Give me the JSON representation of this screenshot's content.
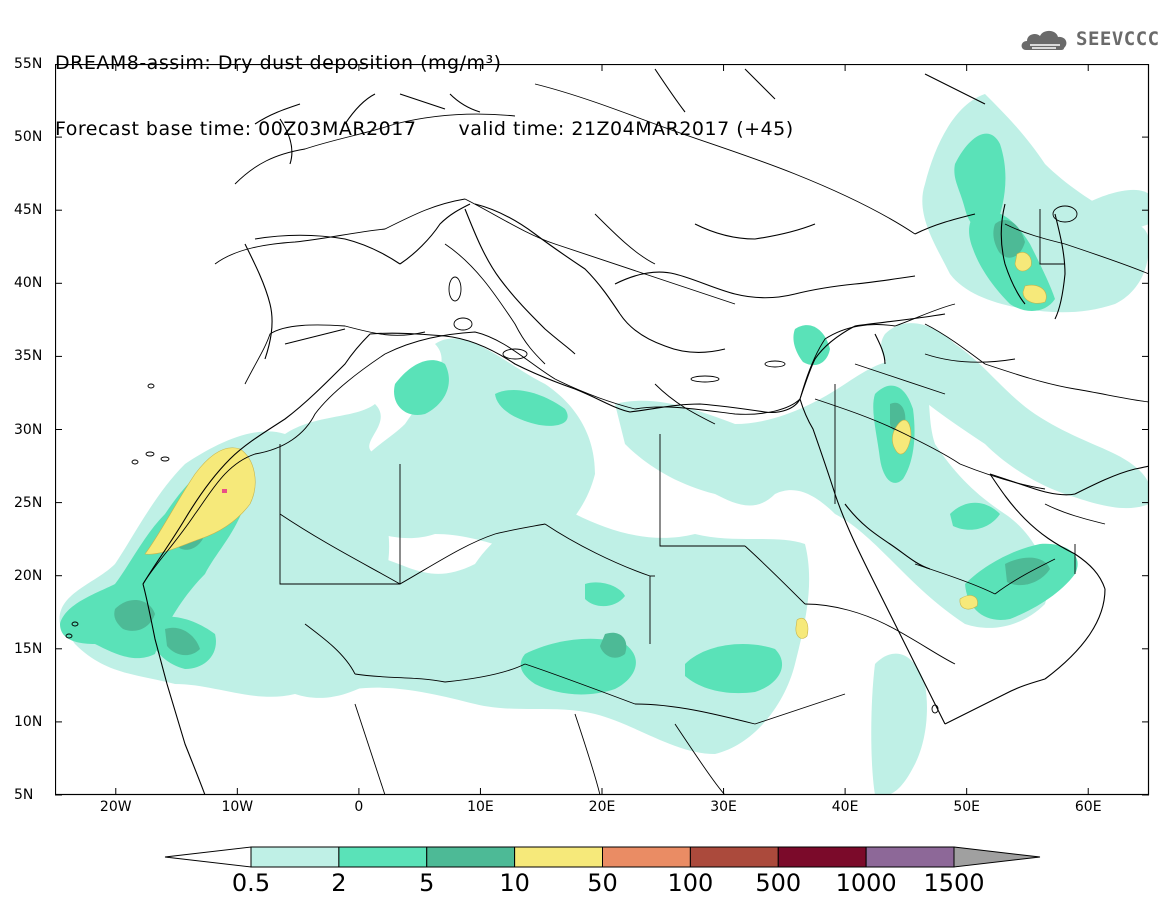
{
  "header": {
    "line1": "DREAM8-assim: Dry dust deposition (mg/m³)",
    "forecast_base": "Forecast base time: 00Z03MAR2017",
    "valid_time": "valid time: 21Z04MAR2017 (+45)"
  },
  "logo": {
    "icon": "cloud-icon",
    "text": "SEEVCCC"
  },
  "map": {
    "lat_labels": [
      "55N",
      "50N",
      "45N",
      "40N",
      "35N",
      "30N",
      "25N",
      "20N",
      "15N",
      "10N",
      "5N"
    ],
    "lon_labels": [
      "20W",
      "10W",
      "0",
      "10E",
      "20E",
      "30E",
      "40E",
      "50E",
      "60E"
    ],
    "lat_range": [
      5,
      55
    ],
    "lon_range": [
      -25,
      65
    ],
    "lat_ticks": [
      55,
      50,
      45,
      40,
      35,
      30,
      25,
      20,
      15,
      10,
      5
    ],
    "lon_ticks": [
      -20,
      -10,
      0,
      10,
      20,
      30,
      40,
      50,
      60
    ]
  },
  "legend": {
    "labels": [
      "0.5",
      "2",
      "5",
      "10",
      "50",
      "100",
      "500",
      "1000",
      "1500"
    ],
    "colors": [
      "#ffffff",
      "#bff0e6",
      "#5ae2b8",
      "#4dba96",
      "#f6e97a",
      "#ea8c64",
      "#ab4a3c",
      "#7b0a2a",
      "#8d6898",
      "#a0a0a0"
    ]
  }
}
